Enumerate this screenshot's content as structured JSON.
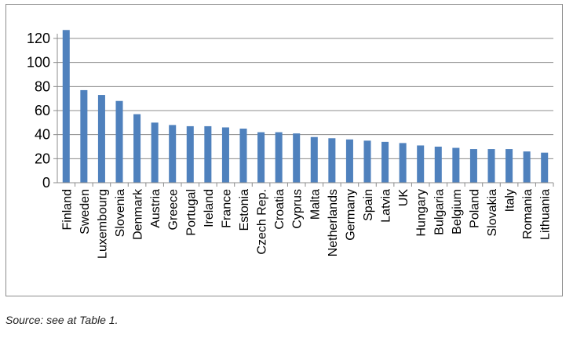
{
  "chart_data": {
    "type": "bar",
    "categories": [
      "Finland",
      "Sweden",
      "Luxembourg",
      "Slovenia",
      "Denmark",
      "Austria",
      "Greece",
      "Portugal",
      "Ireland",
      "France",
      "Estonia",
      "Czech Rep.",
      "Croatia",
      "Cyprus",
      "Malta",
      "Netherlands",
      "Germany",
      "Spain",
      "Latvia",
      "UK",
      "Hungary",
      "Bulgaria",
      "Belgium",
      "Poland",
      "Slovakia",
      "Italy",
      "Romania",
      "Lithuania"
    ],
    "values": [
      127,
      77,
      73,
      68,
      57,
      50,
      48,
      47,
      47,
      46,
      45,
      42,
      42,
      41,
      38,
      37,
      36,
      35,
      34,
      33,
      31,
      30,
      29,
      28,
      28,
      28,
      26,
      25
    ],
    "ylim": [
      0,
      120
    ],
    "yticks": [
      0,
      20,
      40,
      60,
      80,
      100,
      120
    ],
    "grid": true,
    "bar_color": "#4f81bd",
    "title": "",
    "xlabel": "",
    "ylabel": ""
  },
  "source_note": "Source: see at Table 1."
}
